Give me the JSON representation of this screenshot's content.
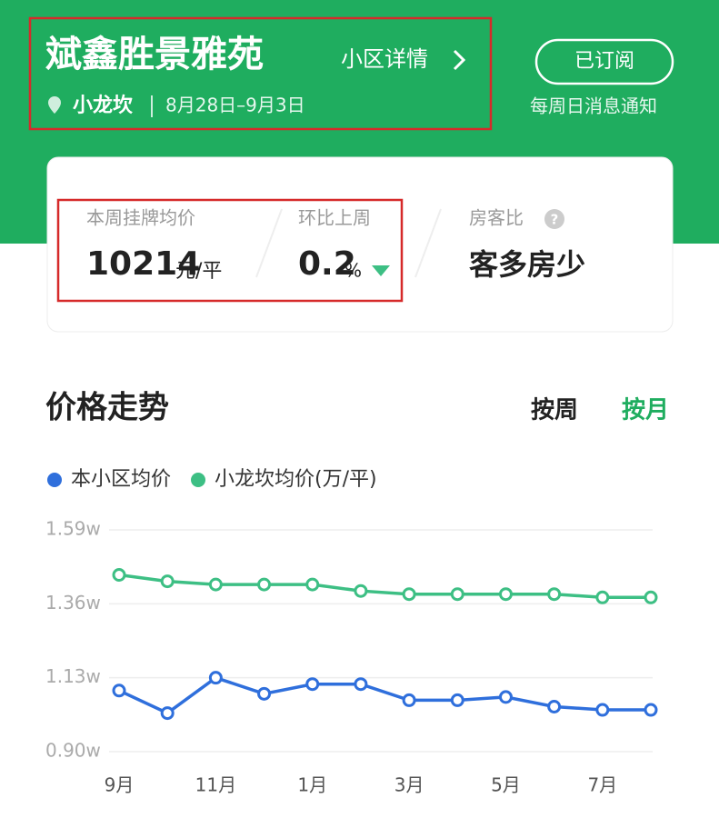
{
  "header": {
    "title": "斌鑫胜景雅苑",
    "detail_link": "小区详情",
    "location": "小龙坎",
    "date_range": "8月28日–9月3日",
    "subscribe_button": "已订阅",
    "notice": "每周日消息通知"
  },
  "stats": {
    "avg_price_label": "本周挂牌均价",
    "avg_price": "10214",
    "avg_price_unit": "元/平",
    "change_label": "环比上周",
    "change": "0.2",
    "change_unit": "%",
    "ratio_label": "房客比",
    "ratio": "客多房少"
  },
  "section": {
    "title": "价格走势",
    "tabs": [
      "按周",
      "按月"
    ]
  },
  "chart_data": {
    "type": "line",
    "categories": [
      "9月",
      null,
      "11月",
      null,
      "1月",
      null,
      "3月",
      null,
      "5月",
      null,
      "7月",
      null
    ],
    "series": [
      {
        "name": "本小区均价",
        "color": "#2f6fdc",
        "values": [
          1.09,
          1.02,
          1.13,
          1.08,
          1.11,
          1.11,
          1.06,
          1.06,
          1.07,
          1.04,
          1.03,
          1.03
        ]
      },
      {
        "name": "小龙坎均价(万/平)",
        "color": "#3dbf84",
        "values": [
          1.45,
          1.43,
          1.42,
          1.42,
          1.42,
          1.4,
          1.39,
          1.39,
          1.39,
          1.39,
          1.38,
          1.38
        ]
      }
    ],
    "ylim": [
      0.9,
      1.59
    ],
    "yticks": [
      {
        "value": 0.9,
        "label": "0.90w"
      },
      {
        "value": 1.13,
        "label": "1.13w"
      },
      {
        "value": 1.36,
        "label": "1.36w"
      },
      {
        "value": 1.59,
        "label": "1.59w"
      }
    ],
    "grid": true
  }
}
